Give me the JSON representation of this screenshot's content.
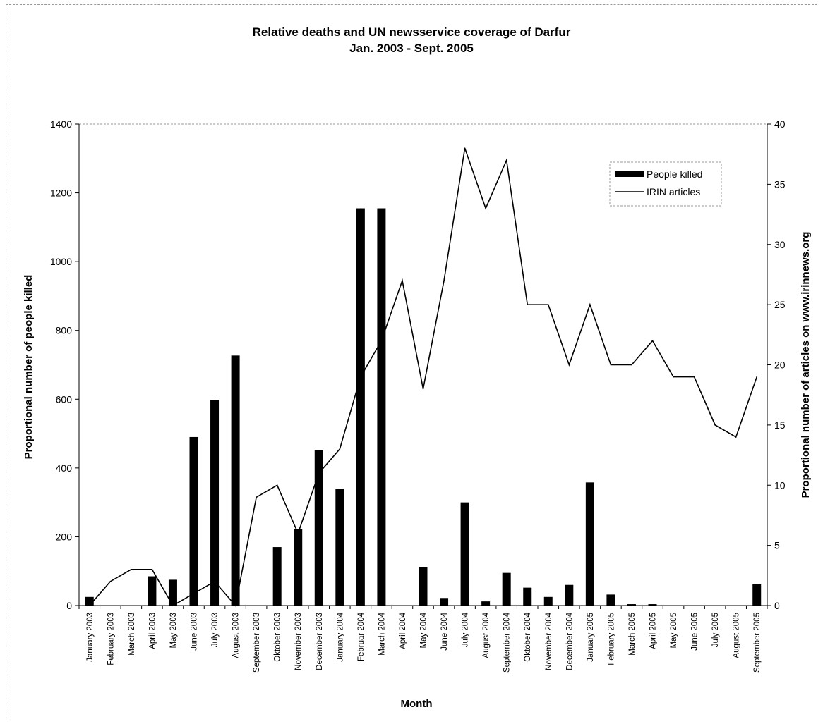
{
  "chart_data": {
    "type": "bar",
    "title": "Relative deaths and UN newsservice coverage of Darfur",
    "subtitle": "Jan. 2003 - Sept. 2005",
    "xlabel": "Month",
    "ylabel_left": "Proportional number of people killed",
    "ylabel_right": "Proportional number of articles on www.irinnews.org",
    "ylim_left": [
      0,
      1400
    ],
    "ylim_right": [
      0,
      40
    ],
    "yticks_left": [
      0,
      200,
      400,
      600,
      800,
      1000,
      1200,
      1400
    ],
    "yticks_right": [
      0,
      5,
      10,
      15,
      20,
      25,
      30,
      35,
      40
    ],
    "grid": false,
    "legend_position": "top-right",
    "categories": [
      "January 2003",
      "February 2003",
      "March 2003",
      "April 2003",
      "May 2003",
      "June 2003",
      "July 2003",
      "August 2003",
      "September 2003",
      "Oktober 2003",
      "November 2003",
      "December 2003",
      "January 2004",
      "Februar 2004",
      "March 2004",
      "April 2004",
      "May 2004",
      "June 2004",
      "July 2004",
      "August 2004",
      "September 2004",
      "Oktober 2004",
      "November 2004",
      "December 2004",
      "January 2005",
      "February 2005",
      "March 2005",
      "April 2005",
      "May 2005",
      "June 2005",
      "July 2005",
      "August 2005",
      "September 2005"
    ],
    "series": [
      {
        "name": "People killed",
        "type": "bar",
        "axis": "left",
        "color": "#000000",
        "values": [
          25,
          0,
          0,
          85,
          75,
          490,
          598,
          727,
          0,
          170,
          222,
          452,
          340,
          1155,
          1155,
          0,
          112,
          22,
          300,
          12,
          95,
          52,
          25,
          60,
          358,
          32,
          4,
          4,
          0,
          0,
          0,
          0,
          62
        ]
      },
      {
        "name": "IRIN articles",
        "type": "line",
        "axis": "right",
        "color": "#000000",
        "values": [
          0,
          2,
          3,
          3,
          0,
          1,
          2,
          0,
          9,
          10,
          6,
          11,
          13,
          19,
          22,
          27,
          18,
          27,
          38,
          33,
          37,
          25,
          25,
          20,
          25,
          20,
          20,
          22,
          19,
          19,
          15,
          14,
          19
        ]
      }
    ]
  }
}
